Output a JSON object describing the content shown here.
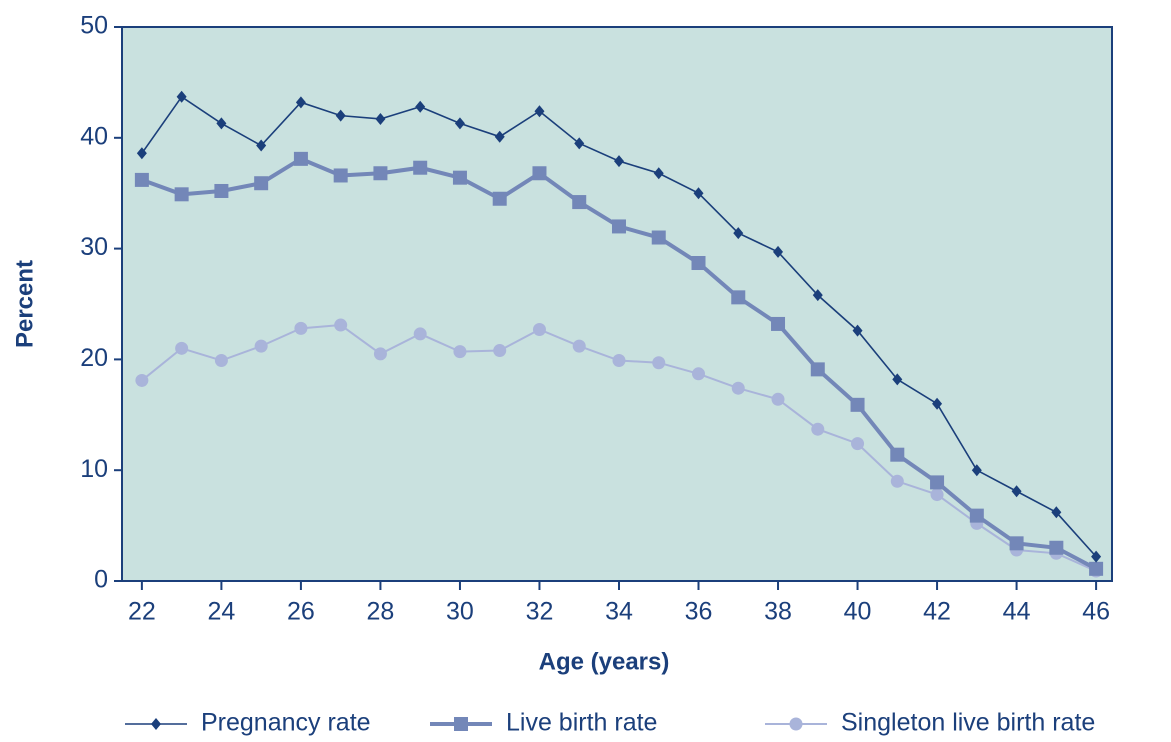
{
  "chart_data": {
    "type": "line",
    "x_label": "Age (years)",
    "y_label": "Percent",
    "x": [
      22,
      23,
      24,
      25,
      26,
      27,
      28,
      29,
      30,
      31,
      32,
      33,
      34,
      35,
      36,
      37,
      38,
      39,
      40,
      41,
      42,
      43,
      44,
      45,
      46
    ],
    "series": [
      {
        "name": "Pregnancy rate",
        "color": "#1b3f7b",
        "marker": "diamond",
        "values": [
          38.6,
          43.7,
          41.3,
          39.3,
          43.2,
          42.0,
          41.7,
          42.8,
          41.3,
          40.1,
          42.4,
          39.5,
          37.9,
          36.8,
          35.0,
          31.4,
          29.7,
          25.8,
          22.6,
          18.2,
          16.0,
          10.0,
          8.1,
          6.2,
          2.2
        ]
      },
      {
        "name": "Live birth rate",
        "color": "#7387b8",
        "marker": "square",
        "values": [
          36.2,
          34.9,
          35.2,
          35.9,
          38.1,
          36.6,
          36.8,
          37.3,
          36.4,
          34.5,
          36.8,
          34.2,
          32.0,
          31.0,
          28.7,
          25.6,
          23.2,
          19.1,
          15.9,
          11.4,
          8.9,
          5.9,
          3.4,
          3.0,
          1.1
        ]
      },
      {
        "name": "Singleton live birth rate",
        "color": "#a9b4da",
        "marker": "circle",
        "values": [
          18.1,
          21.0,
          19.9,
          21.2,
          22.8,
          23.1,
          20.5,
          22.3,
          20.7,
          20.8,
          22.7,
          21.2,
          19.9,
          19.7,
          18.7,
          17.4,
          16.4,
          13.7,
          12.4,
          9.0,
          7.8,
          5.2,
          2.8,
          2.5,
          0.9
        ]
      }
    ],
    "xlim": [
      21.5,
      46.4
    ],
    "xticks": [
      22,
      24,
      26,
      28,
      30,
      32,
      34,
      36,
      38,
      40,
      42,
      44,
      46
    ],
    "ylim": [
      0,
      50
    ],
    "yticks": [
      0,
      10,
      20,
      30,
      40,
      50
    ],
    "plot_background": "#c9e1df",
    "legend": "bottom"
  }
}
